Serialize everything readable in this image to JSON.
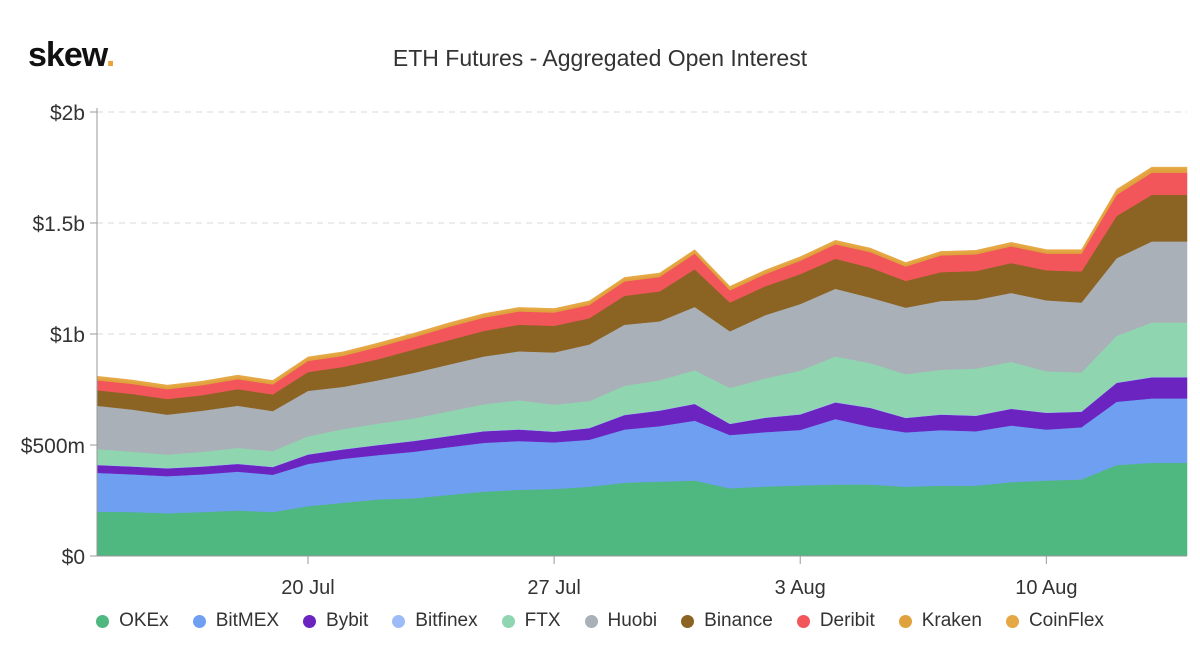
{
  "brand": {
    "name": "skew",
    "dot": "."
  },
  "chart_data": {
    "type": "area",
    "stacked": true,
    "title": "ETH Futures - Aggregated Open Interest",
    "x": [
      "2020-07-14",
      "2020-07-15",
      "2020-07-16",
      "2020-07-17",
      "2020-07-18",
      "2020-07-19",
      "2020-07-20",
      "2020-07-21",
      "2020-07-22",
      "2020-07-23",
      "2020-07-24",
      "2020-07-25",
      "2020-07-26",
      "2020-07-27",
      "2020-07-28",
      "2020-07-29",
      "2020-07-30",
      "2020-07-31",
      "2020-08-01",
      "2020-08-02",
      "2020-08-03",
      "2020-08-04",
      "2020-08-05",
      "2020-08-06",
      "2020-08-07",
      "2020-08-08",
      "2020-08-09",
      "2020-08-10",
      "2020-08-11",
      "2020-08-12",
      "2020-08-13",
      "2020-08-14"
    ],
    "x_ticks": [
      {
        "date": "2020-07-20",
        "label": "20 Jul"
      },
      {
        "date": "2020-07-27",
        "label": "27 Jul"
      },
      {
        "date": "2020-08-03",
        "label": "3 Aug"
      },
      {
        "date": "2020-08-10",
        "label": "10 Aug"
      }
    ],
    "y_ticks": [
      {
        "value": 0,
        "label": "$0"
      },
      {
        "value": 500000000,
        "label": "$500m"
      },
      {
        "value": 1000000000,
        "label": "$1b"
      },
      {
        "value": 1500000000,
        "label": "$1.5b"
      },
      {
        "value": 2000000000,
        "label": "$2b"
      }
    ],
    "ylim": [
      0,
      2000000000
    ],
    "grid": true,
    "legend_position": "bottom",
    "series": [
      {
        "name": "OKEx",
        "color": "#4fb780",
        "values": [
          200,
          198,
          193,
          198,
          205,
          198,
          225,
          240,
          255,
          260,
          275,
          290,
          298,
          302,
          312,
          330,
          335,
          340,
          305,
          313,
          318,
          322,
          322,
          312,
          317,
          317,
          333,
          340,
          345,
          410,
          420,
          420
        ]
      },
      {
        "name": "BitMEX",
        "color": "#6e9ff0",
        "values": [
          175,
          170,
          167,
          170,
          175,
          168,
          190,
          198,
          200,
          210,
          215,
          220,
          220,
          210,
          212,
          240,
          250,
          270,
          240,
          245,
          250,
          295,
          260,
          245,
          250,
          245,
          255,
          230,
          235,
          285,
          290,
          290
        ]
      },
      {
        "name": "Bybit",
        "color": "#6b24c0",
        "values": [
          35,
          35,
          35,
          35,
          35,
          35,
          42,
          42,
          45,
          48,
          50,
          52,
          52,
          48,
          52,
          65,
          70,
          75,
          50,
          65,
          70,
          75,
          85,
          65,
          70,
          70,
          75,
          75,
          70,
          85,
          95,
          95
        ]
      },
      {
        "name": "Bitfinex",
        "color": "#9dbcf7",
        "values": [
          2,
          2,
          2,
          2,
          2,
          2,
          2,
          2,
          2,
          2,
          2,
          2,
          2,
          2,
          2,
          2,
          2,
          2,
          2,
          2,
          2,
          2,
          2,
          2,
          2,
          2,
          2,
          2,
          2,
          2,
          2,
          2
        ]
      },
      {
        "name": "FTX",
        "color": "#8fd6b0",
        "values": [
          70,
          65,
          60,
          65,
          70,
          70,
          80,
          90,
          95,
          100,
          110,
          120,
          130,
          120,
          120,
          130,
          135,
          150,
          160,
          175,
          195,
          205,
          200,
          195,
          200,
          210,
          210,
          185,
          175,
          210,
          245,
          245
        ]
      },
      {
        "name": "Huobi",
        "color": "#a9b0b8",
        "values": [
          195,
          190,
          180,
          185,
          190,
          180,
          205,
          190,
          195,
          205,
          210,
          215,
          220,
          235,
          255,
          275,
          265,
          285,
          255,
          285,
          300,
          305,
          295,
          300,
          310,
          310,
          310,
          320,
          315,
          350,
          365,
          365
        ]
      },
      {
        "name": "Binance",
        "color": "#8b6322",
        "values": [
          70,
          70,
          70,
          70,
          75,
          75,
          85,
          90,
          95,
          105,
          110,
          115,
          120,
          120,
          118,
          130,
          135,
          170,
          130,
          130,
          135,
          135,
          135,
          120,
          130,
          130,
          135,
          135,
          140,
          190,
          210,
          210
        ]
      },
      {
        "name": "Deribit",
        "color": "#f2555a",
        "values": [
          45,
          45,
          45,
          45,
          45,
          45,
          50,
          50,
          55,
          55,
          60,
          60,
          60,
          60,
          60,
          65,
          65,
          70,
          55,
          55,
          60,
          65,
          70,
          65,
          75,
          75,
          75,
          75,
          80,
          95,
          100,
          100
        ]
      },
      {
        "name": "Kraken",
        "color": "#e0a23c",
        "values": [
          10,
          10,
          10,
          10,
          10,
          10,
          10,
          10,
          10,
          10,
          10,
          10,
          10,
          10,
          10,
          10,
          10,
          10,
          10,
          10,
          10,
          10,
          10,
          10,
          10,
          10,
          10,
          10,
          10,
          15,
          15,
          15
        ]
      },
      {
        "name": "CoinFlex",
        "color": "#e5a844",
        "values": [
          8,
          8,
          8,
          8,
          8,
          8,
          8,
          8,
          8,
          8,
          8,
          8,
          8,
          8,
          8,
          8,
          8,
          8,
          8,
          8,
          8,
          8,
          8,
          8,
          8,
          8,
          8,
          8,
          8,
          10,
          10,
          10
        ]
      }
    ],
    "value_unit_multiplier": 1000000
  }
}
